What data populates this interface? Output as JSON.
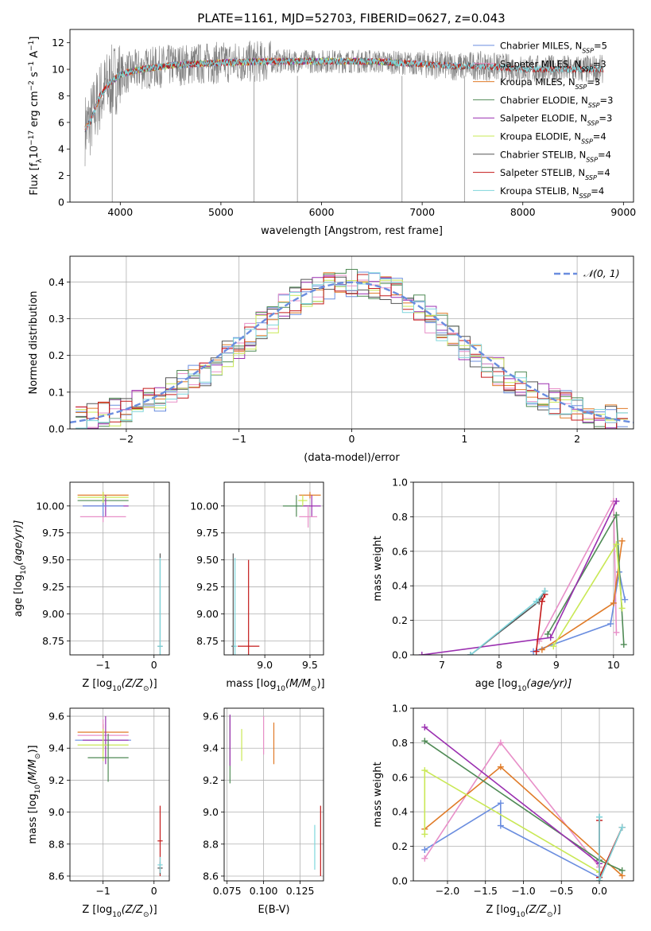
{
  "figure_title": "PLATE=1161, MJD=52703, FIBERID=0627, z=0.043",
  "colors": {
    "chabrier_miles": "#6a8ddf",
    "salpeter_miles": "#e88fc8",
    "kroupa_miles": "#e07b28",
    "chabrier_elodie": "#4f8a55",
    "salpeter_elodie": "#9a2fb0",
    "kroupa_elodie": "#c9e855",
    "chabrier_stelib": "#555555",
    "salpeter_stelib": "#c41a1a",
    "kroupa_stelib": "#7fd6dc",
    "gaussian": "#6a8ddf",
    "grid": "#b0b0b0",
    "spectrum": "#7f7f7f"
  },
  "chart_data": [
    {
      "id": "spectrum",
      "type": "line",
      "xlabel": "wavelength [Angstrom, rest frame]",
      "ylabel": "Flux [f",
      "ylabel_tail": "10",
      "ylabel_exp": "−17",
      "ylabel_units": " erg cm",
      "ylabel_units_exp": "−2",
      "ylabel_s": " s",
      "ylabel_s_exp": "−1",
      "ylabel_a": " A",
      "ylabel_a_exp": "−1",
      "ylabel_end": "]",
      "xlim": [
        3500,
        9100
      ],
      "ylim": [
        0,
        13
      ],
      "xticks": [
        "4000",
        "5000",
        "6000",
        "7000",
        "8000",
        "9000"
      ],
      "yticks": [
        "0",
        "2",
        "4",
        "6",
        "8",
        "10",
        "12"
      ],
      "grid": false,
      "legend_position": "right",
      "legend": [
        {
          "text": "Chabrier MILES, N",
          "sub": "SSP",
          "tail": "=5"
        },
        {
          "text": "Salpeter MILES, N",
          "sub": "SSP",
          "tail": "=3"
        },
        {
          "text": "Kroupa MILES, N",
          "sub": "SSP",
          "tail": "=3"
        },
        {
          "text": "Chabrier ELODIE, N",
          "sub": "SSP",
          "tail": "=3"
        },
        {
          "text": "Salpeter ELODIE, N",
          "sub": "SSP",
          "tail": "=3"
        },
        {
          "text": "Kroupa ELODIE, N",
          "sub": "SSP",
          "tail": "=4"
        },
        {
          "text": "Chabrier STELIB, N",
          "sub": "SSP",
          "tail": "=4"
        },
        {
          "text": "Salpeter STELIB, N",
          "sub": "SSP",
          "tail": "=4"
        },
        {
          "text": "Kroupa STELIB, N",
          "sub": "SSP",
          "tail": "=4"
        }
      ],
      "data_envelope": {
        "x": [
          3650,
          3700,
          3800,
          3900,
          4000,
          4200,
          4500,
          5000,
          5500,
          6000,
          6500,
          7000,
          7400,
          7500,
          8000,
          8500,
          8800
        ],
        "y": [
          5.5,
          6.0,
          8.0,
          9.0,
          9.6,
          10.0,
          10.3,
          10.5,
          10.6,
          10.6,
          10.6,
          10.4,
          10.2,
          10.3,
          10.0,
          10.0,
          10.0
        ]
      },
      "model_ranges": [
        {
          "series": "Chabrier MILES",
          "x": [
            3650,
            7420
          ]
        },
        {
          "series": "Salpeter MILES",
          "x": [
            3650,
            7420
          ]
        },
        {
          "series": "Kroupa MILES",
          "x": [
            3650,
            7420
          ]
        },
        {
          "series": "Chabrier ELODIE",
          "x": [
            3900,
            6800
          ]
        },
        {
          "series": "Salpeter ELODIE",
          "x": [
            3900,
            6800
          ]
        },
        {
          "series": "Kroupa ELODIE",
          "x": [
            3900,
            6800
          ]
        },
        {
          "series": "Chabrier STELIB",
          "x": [
            3650,
            8800
          ]
        },
        {
          "series": "Salpeter STELIB",
          "x": [
            3650,
            8800
          ]
        },
        {
          "series": "Kroupa STELIB",
          "x": [
            3650,
            8800
          ]
        }
      ]
    },
    {
      "id": "residuals",
      "type": "bar",
      "xlabel": "(data-model)/error",
      "ylabel": "Normed distribution",
      "xlim": [
        -2.5,
        2.5
      ],
      "ylim": [
        0,
        0.47
      ],
      "xticks": [
        "−2",
        "−1",
        "0",
        "1",
        "2"
      ],
      "yticks": [
        "0.0",
        "0.1",
        "0.2",
        "0.3",
        "0.4"
      ],
      "grid": true,
      "legend_position": "top-right",
      "legend": [
        {
          "text": "𝒩(0, 1)"
        }
      ],
      "bin_centers": [
        -2.4,
        -2.3,
        -2.2,
        -2.1,
        -2.0,
        -1.9,
        -1.8,
        -1.7,
        -1.6,
        -1.5,
        -1.4,
        -1.3,
        -1.2,
        -1.1,
        -1.0,
        -0.9,
        -0.8,
        -0.7,
        -0.6,
        -0.5,
        -0.4,
        -0.3,
        -0.2,
        -0.1,
        0.0,
        0.1,
        0.2,
        0.3,
        0.4,
        0.5,
        0.6,
        0.7,
        0.8,
        0.9,
        1.0,
        1.1,
        1.2,
        1.3,
        1.4,
        1.5,
        1.6,
        1.7,
        1.8,
        1.9,
        2.0,
        2.1,
        2.2,
        2.3,
        2.4
      ],
      "density": [
        0.025,
        0.032,
        0.04,
        0.048,
        0.055,
        0.065,
        0.075,
        0.088,
        0.1,
        0.12,
        0.135,
        0.155,
        0.175,
        0.2,
        0.225,
        0.25,
        0.28,
        0.3,
        0.33,
        0.35,
        0.37,
        0.38,
        0.39,
        0.395,
        0.4,
        0.395,
        0.39,
        0.38,
        0.37,
        0.35,
        0.33,
        0.3,
        0.28,
        0.25,
        0.225,
        0.2,
        0.175,
        0.155,
        0.135,
        0.12,
        0.1,
        0.088,
        0.075,
        0.065,
        0.055,
        0.048,
        0.04,
        0.032,
        0.025
      ]
    },
    {
      "id": "age_vs_Z",
      "type": "scatter",
      "xlabel": "Z [log",
      "xlabel_sub": "10",
      "xlabel_tail": "(Z/Z",
      "xlabel_end": ")]",
      "ylabel": "age  [log",
      "ylabel_sub": "10",
      "ylabel_tail": "(age/yr)]",
      "xlim": [
        -1.65,
        0.3
      ],
      "ylim": [
        8.62,
        10.22
      ],
      "xticks": [
        "−1",
        "0"
      ],
      "yticks": [
        "8.75",
        "9.00",
        "9.25",
        "9.50",
        "9.75",
        "10.00"
      ],
      "grid": true,
      "points": [
        {
          "series": "Kroupa MILES",
          "x": -1.0,
          "y": 10.1,
          "xerr": 0.5,
          "yerr": 0.03
        },
        {
          "series": "Chabrier ELODIE",
          "x": -1.0,
          "y": 10.05,
          "xerr": 0.5,
          "yerr": 0.05
        },
        {
          "series": "Salpeter ELODIE",
          "x": -0.95,
          "y": 10.0,
          "xerr": 0.45,
          "yerr": 0.1
        },
        {
          "series": "Salpeter MILES",
          "x": -1.0,
          "y": 9.9,
          "xerr": 0.45,
          "yerr": 0.05
        },
        {
          "series": "Chabrier MILES",
          "x": -1.0,
          "y": 10.0,
          "xerr": 0.4,
          "yerr": 0.1
        },
        {
          "series": "Kroupa ELODIE",
          "x": -1.0,
          "y": 10.08,
          "xerr": 0.5,
          "yerr": 0.05
        },
        {
          "series": "Chabrier STELIB",
          "x": 0.12,
          "y": 8.7,
          "xerr": 0.05,
          "yerr": 0.86
        },
        {
          "series": "Kroupa STELIB",
          "x": 0.12,
          "y": 8.7,
          "xerr": 0.05,
          "yerr": 0.82
        }
      ]
    },
    {
      "id": "age_vs_mass",
      "type": "scatter",
      "xlabel": "mass [log",
      "xlabel_sub": "10",
      "xlabel_tail": "(M/M",
      "xlabel_end": ")]",
      "xlim": [
        8.55,
        9.65
      ],
      "ylim": [
        8.62,
        10.22
      ],
      "xticks": [
        "9.0",
        "9.5"
      ],
      "yticks": [
        "8.75",
        "9.00",
        "9.25",
        "9.50",
        "9.75",
        "10.00"
      ],
      "grid": true,
      "points": [
        {
          "series": "Kroupa MILES",
          "x": 9.5,
          "y": 10.1,
          "xerr": 0.12,
          "yerr": 0.03
        },
        {
          "series": "Chabrier ELODIE",
          "x": 9.35,
          "y": 10.0,
          "xerr": 0.15,
          "yerr": 0.1
        },
        {
          "series": "Salpeter ELODIE",
          "x": 9.52,
          "y": 10.0,
          "xerr": 0.1,
          "yerr": 0.1
        },
        {
          "series": "Salpeter MILES",
          "x": 9.48,
          "y": 9.9,
          "xerr": 0.1,
          "yerr": 0.1
        },
        {
          "series": "Kroupa ELODIE",
          "x": 9.42,
          "y": 10.05,
          "xerr": 0.05,
          "yerr": 0.05
        },
        {
          "series": "Salpeter STELIB",
          "x": 8.82,
          "y": 8.7,
          "xerr": 0.12,
          "yerr": 0.8
        },
        {
          "series": "Chabrier STELIB",
          "x": 8.65,
          "y": 8.7,
          "xerr": 0.02,
          "yerr": 0.86
        },
        {
          "series": "Kroupa STELIB",
          "x": 8.67,
          "y": 8.7,
          "xerr": 0.02,
          "yerr": 0.82
        }
      ]
    },
    {
      "id": "weight_vs_age",
      "type": "line",
      "xlabel": "age  [log",
      "xlabel_sub": "10",
      "xlabel_tail": "(age/yr)]",
      "ylabel": "mass weight",
      "xlim": [
        6.5,
        10.35
      ],
      "ylim": [
        0,
        1.0
      ],
      "xticks": [
        "7",
        "8",
        "9",
        "10"
      ],
      "yticks": [
        "0.0",
        "0.2",
        "0.4",
        "0.6",
        "0.8",
        "1.0"
      ],
      "grid": true,
      "series": [
        {
          "name": "Chabrier MILES",
          "x": [
            8.6,
            9.95,
            10.1,
            10.2
          ],
          "y": [
            0.02,
            0.18,
            0.48,
            0.32
          ]
        },
        {
          "name": "Salpeter MILES",
          "x": [
            8.7,
            10.0,
            10.05
          ],
          "y": [
            0.08,
            0.89,
            0.13
          ]
        },
        {
          "name": "Kroupa MILES",
          "x": [
            8.75,
            10.0,
            10.15
          ],
          "y": [
            0.03,
            0.3,
            0.66
          ]
        },
        {
          "name": "Chabrier ELODIE",
          "x": [
            8.85,
            10.05,
            10.18
          ],
          "y": [
            0.12,
            0.81,
            0.06
          ]
        },
        {
          "name": "Salpeter ELODIE",
          "x": [
            6.65,
            8.9,
            10.05
          ],
          "y": [
            0.0,
            0.1,
            0.89
          ]
        },
        {
          "name": "Kroupa ELODIE",
          "x": [
            8.95,
            10.05,
            10.15
          ],
          "y": [
            0.05,
            0.64,
            0.27
          ]
        },
        {
          "name": "Chabrier STELIB",
          "x": [
            7.5,
            8.7,
            8.8
          ],
          "y": [
            0.0,
            0.31,
            0.37
          ]
        },
        {
          "name": "Salpeter STELIB",
          "x": [
            8.65,
            8.75,
            8.8
          ],
          "y": [
            0.02,
            0.31,
            0.35
          ]
        },
        {
          "name": "Kroupa STELIB",
          "x": [
            7.5,
            8.65,
            8.8
          ],
          "y": [
            0.0,
            0.31,
            0.37
          ]
        }
      ]
    },
    {
      "id": "mass_vs_Z",
      "type": "scatter",
      "xlabel": "Z [log",
      "xlabel_sub": "10",
      "xlabel_tail": "(Z/Z",
      "xlabel_end": ")]",
      "ylabel": "mass [log",
      "ylabel_sub": "10",
      "ylabel_tail": "(M/M",
      "ylabel_end": ")]",
      "xlim": [
        -1.65,
        0.3
      ],
      "ylim": [
        8.57,
        9.65
      ],
      "xticks": [
        "−1",
        "0"
      ],
      "yticks": [
        "8.6",
        "8.8",
        "9.0",
        "9.2",
        "9.4",
        "9.6"
      ],
      "grid": true,
      "points": [
        {
          "series": "Kroupa MILES",
          "x": -1.0,
          "y": 9.5,
          "xerr": 0.5,
          "yerr": 0.05
        },
        {
          "series": "Salpeter MILES",
          "x": -1.0,
          "y": 9.48,
          "xerr": 0.5,
          "yerr": 0.1
        },
        {
          "series": "Chabrier MILES",
          "x": -1.0,
          "y": 9.45,
          "xerr": 0.55,
          "yerr": 0.05
        },
        {
          "series": "Salpeter ELODIE",
          "x": -0.95,
          "y": 9.45,
          "xerr": 0.45,
          "yerr": 0.15
        },
        {
          "series": "Kroupa ELODIE",
          "x": -1.0,
          "y": 9.42,
          "xerr": 0.5,
          "yerr": 0.1
        },
        {
          "series": "Chabrier ELODIE",
          "x": -0.9,
          "y": 9.34,
          "xerr": 0.4,
          "yerr": 0.15
        },
        {
          "series": "Salpeter STELIB",
          "x": 0.12,
          "y": 8.82,
          "xerr": 0.05,
          "yerr": 0.22
        },
        {
          "series": "Chabrier STELIB",
          "x": 0.12,
          "y": 8.65,
          "xerr": 0.05,
          "yerr": 0.04
        },
        {
          "series": "Kroupa STELIB",
          "x": 0.12,
          "y": 8.67,
          "xerr": 0.05,
          "yerr": 0.05
        }
      ]
    },
    {
      "id": "mass_vs_ebv",
      "type": "scatter",
      "xlabel": "E(B-V)",
      "xlim": [
        0.073,
        0.141
      ],
      "ylim": [
        8.57,
        9.65
      ],
      "xticks": [
        "0.075",
        "0.100",
        "0.125"
      ],
      "yticks": [
        "8.6",
        "8.8",
        "9.0",
        "9.2",
        "9.4",
        "9.6"
      ],
      "grid": true,
      "points": [
        {
          "series": "Chabrier ELODIE",
          "x": 0.077,
          "y": 9.39,
          "yerr": 0.21
        },
        {
          "series": "Salpeter ELODIE",
          "x": 0.077,
          "y": 9.45,
          "yerr": 0.16
        },
        {
          "series": "Kroupa ELODIE",
          "x": 0.085,
          "y": 9.42,
          "yerr": 0.1
        },
        {
          "series": "Salpeter MILES",
          "x": 0.1,
          "y": 9.48,
          "yerr": 0.12
        },
        {
          "series": "Kroupa MILES",
          "x": 0.107,
          "y": 9.43,
          "yerr": 0.13
        },
        {
          "series": "Kroupa STELIB",
          "x": 0.135,
          "y": 8.78,
          "yerr": 0.14
        },
        {
          "series": "Salpeter STELIB",
          "x": 0.139,
          "y": 8.82,
          "yerr": 0.22
        }
      ]
    },
    {
      "id": "weight_vs_Z",
      "type": "line",
      "xlabel": "Z [log",
      "xlabel_sub": "10",
      "xlabel_tail": "(Z/Z",
      "xlabel_end": ")]",
      "ylabel": "mass weight",
      "xlim": [
        -2.45,
        0.45
      ],
      "ylim": [
        0,
        1.0
      ],
      "xticks": [
        "−2.0",
        "−1.5",
        "−1.0",
        "−0.5",
        "0.0"
      ],
      "yticks": [
        "0.0",
        "0.2",
        "0.4",
        "0.6",
        "0.8",
        "1.0"
      ],
      "grid": true,
      "series": [
        {
          "name": "Chabrier MILES",
          "x": [
            -2.3,
            -1.3,
            -1.3,
            0.0
          ],
          "y": [
            0.18,
            0.45,
            0.32,
            0.02
          ]
        },
        {
          "name": "Salpeter MILES",
          "x": [
            -2.3,
            -1.3,
            0.0
          ],
          "y": [
            0.13,
            0.8,
            0.08
          ]
        },
        {
          "name": "Kroupa MILES",
          "x": [
            -2.3,
            -1.3,
            0.3
          ],
          "y": [
            0.3,
            0.66,
            0.03
          ]
        },
        {
          "name": "Chabrier ELODIE",
          "x": [
            -2.3,
            0.0,
            0.3
          ],
          "y": [
            0.81,
            0.12,
            0.06
          ]
        },
        {
          "name": "Salpeter ELODIE",
          "x": [
            -2.3,
            0.0
          ],
          "y": [
            0.89,
            0.1
          ]
        },
        {
          "name": "Kroupa ELODIE",
          "x": [
            -2.3,
            -2.3,
            0.0
          ],
          "y": [
            0.27,
            0.64,
            0.05
          ]
        },
        {
          "name": "Chabrier STELIB",
          "x": [
            0.0,
            0.0,
            0.3
          ],
          "y": [
            0.37,
            0.0,
            0.31
          ]
        },
        {
          "name": "Salpeter STELIB",
          "x": [
            0.0,
            0.0,
            0.3
          ],
          "y": [
            0.35,
            0.02,
            0.31
          ]
        },
        {
          "name": "Kroupa STELIB",
          "x": [
            0.0,
            0.0,
            0.3
          ],
          "y": [
            0.37,
            0.0,
            0.31
          ]
        }
      ]
    }
  ]
}
